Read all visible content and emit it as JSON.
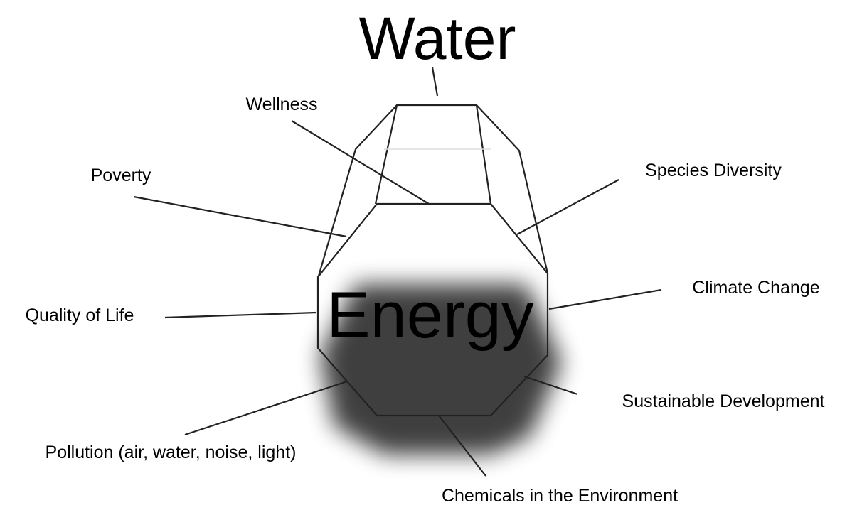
{
  "title": "Water",
  "center": "Energy",
  "labels": [
    "Wellness",
    "Poverty",
    "Species Diversity",
    "Climate Change",
    "Quality of Life",
    "Sustainable Development",
    "Pollution (air, water, noise, light)",
    "Chemicals in the Environment"
  ]
}
